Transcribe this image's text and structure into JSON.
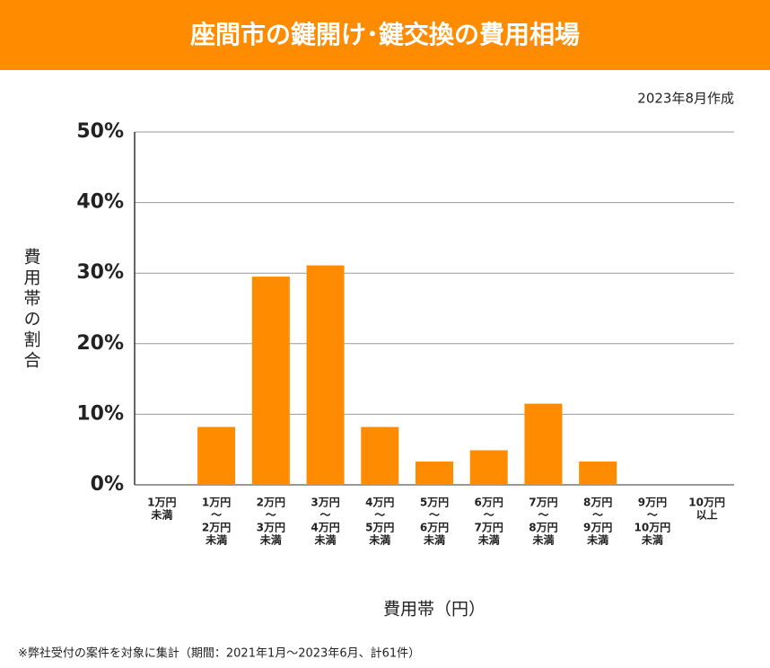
{
  "chart_data": {
    "type": "bar",
    "title": "座間市の鍵開け･鍵交換の費用相場",
    "subtitle": "2023年8月作成",
    "y_label": "費用帯の割合",
    "x_label": "費用帯（円）",
    "note": "※弊社受付の案件を対象に集計（期間：2021年1月～2023年6月、計61件）",
    "categories": [
      [
        "1万円",
        "未満"
      ],
      [
        "1万円",
        "〜",
        "2万円",
        "未満"
      ],
      [
        "2万円",
        "〜",
        "3万円",
        "未満"
      ],
      [
        "3万円",
        "〜",
        "4万円",
        "未満"
      ],
      [
        "4万円",
        "〜",
        "5万円",
        "未満"
      ],
      [
        "5万円",
        "〜",
        "6万円",
        "未満"
      ],
      [
        "6万円",
        "〜",
        "7万円",
        "未満"
      ],
      [
        "7万円",
        "〜",
        "8万円",
        "未満"
      ],
      [
        "8万円",
        "〜",
        "9万円",
        "未満"
      ],
      [
        "9万円",
        "〜",
        "10万円",
        "未満"
      ],
      [
        "10万円",
        "以上"
      ]
    ],
    "values": [
      0,
      8.2,
      29.5,
      31.1,
      8.2,
      3.3,
      4.9,
      11.5,
      3.3,
      0,
      0
    ],
    "color": "#ff8c00",
    "ylim": [
      0,
      50
    ],
    "yticks": [
      {
        "value": 0,
        "label": "0%"
      },
      {
        "value": 10,
        "label": "10%"
      },
      {
        "value": 20,
        "label": "20%"
      },
      {
        "value": 30,
        "label": "30%"
      },
      {
        "value": 40,
        "label": "40%"
      },
      {
        "value": 50,
        "label": "50%"
      }
    ],
    "grid": true
  }
}
